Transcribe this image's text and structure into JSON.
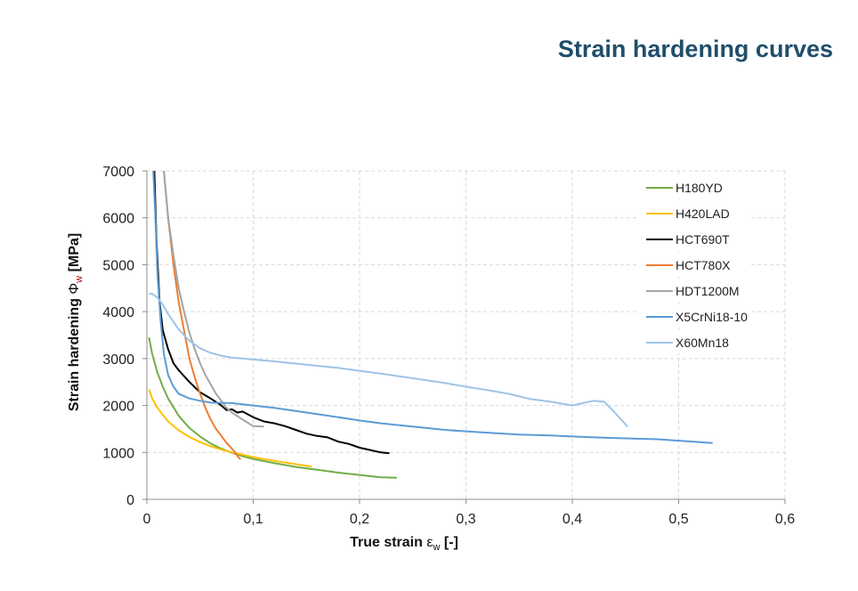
{
  "page": {
    "title": "Strain hardening curves"
  },
  "chart_data": {
    "type": "line",
    "title": "",
    "xlabel": "True strain",
    "xlabel_symbol": "ε",
    "xlabel_sub": "w",
    "xlabel_unit": "[-]",
    "ylabel": "Strain hardening",
    "ylabel_symbol": "Φ",
    "ylabel_sub": "w",
    "ylabel_unit": "[MPa]",
    "xlim": [
      0,
      0.6
    ],
    "ylim": [
      0,
      7000
    ],
    "xticks": [
      0,
      0.1,
      0.2,
      0.3,
      0.4,
      0.5,
      0.6
    ],
    "xtick_labels": [
      "0",
      "0,1",
      "0,2",
      "0,3",
      "0,4",
      "0,5",
      "0,6"
    ],
    "yticks": [
      0,
      1000,
      2000,
      3000,
      4000,
      5000,
      6000,
      7000
    ],
    "ytick_labels": [
      "0",
      "1000",
      "2000",
      "3000",
      "4000",
      "5000",
      "6000",
      "7000"
    ],
    "grid": true,
    "legend_position": "right",
    "series": [
      {
        "name": "H180YD",
        "color": "#70ad47",
        "x": [
          0.002,
          0.005,
          0.01,
          0.015,
          0.02,
          0.03,
          0.04,
          0.05,
          0.06,
          0.07,
          0.08,
          0.09,
          0.1,
          0.12,
          0.14,
          0.16,
          0.18,
          0.2,
          0.22,
          0.235
        ],
        "y": [
          3450,
          3100,
          2700,
          2400,
          2150,
          1780,
          1520,
          1340,
          1190,
          1080,
          990,
          920,
          860,
          770,
          690,
          630,
          570,
          520,
          470,
          460
        ]
      },
      {
        "name": "H420LAD",
        "color": "#ffc000",
        "x": [
          0.002,
          0.005,
          0.01,
          0.015,
          0.02,
          0.03,
          0.04,
          0.05,
          0.06,
          0.07,
          0.08,
          0.09,
          0.1,
          0.12,
          0.14,
          0.155
        ],
        "y": [
          2340,
          2150,
          1950,
          1800,
          1660,
          1470,
          1330,
          1220,
          1130,
          1060,
          1000,
          950,
          900,
          820,
          750,
          700
        ]
      },
      {
        "name": "HCT690T",
        "color": "#000000",
        "x": [
          0.007,
          0.009,
          0.012,
          0.015,
          0.02,
          0.025,
          0.03,
          0.04,
          0.05,
          0.06,
          0.07,
          0.075,
          0.08,
          0.085,
          0.09,
          0.1,
          0.11,
          0.12,
          0.13,
          0.14,
          0.15,
          0.16,
          0.17,
          0.18,
          0.19,
          0.2,
          0.21,
          0.22,
          0.228
        ],
        "y": [
          7000,
          5500,
          4200,
          3600,
          3200,
          2900,
          2750,
          2500,
          2280,
          2150,
          2000,
          1900,
          1920,
          1850,
          1870,
          1750,
          1660,
          1620,
          1560,
          1480,
          1400,
          1350,
          1320,
          1230,
          1180,
          1100,
          1050,
          1000,
          980
        ]
      },
      {
        "name": "HCT780X",
        "color": "#ed7d31",
        "x": [
          0.016,
          0.02,
          0.025,
          0.03,
          0.035,
          0.04,
          0.045,
          0.05,
          0.055,
          0.06,
          0.065,
          0.07,
          0.075,
          0.08,
          0.083,
          0.086,
          0.088
        ],
        "y": [
          7000,
          6000,
          5000,
          4200,
          3600,
          3000,
          2600,
          2250,
          1950,
          1700,
          1500,
          1350,
          1200,
          1080,
          1000,
          900,
          850
        ]
      },
      {
        "name": "HDT1200M",
        "color": "#a5a5a5",
        "x": [
          0.016,
          0.02,
          0.025,
          0.03,
          0.035,
          0.04,
          0.045,
          0.05,
          0.055,
          0.06,
          0.065,
          0.07,
          0.075,
          0.08,
          0.09,
          0.1,
          0.11
        ],
        "y": [
          7000,
          6000,
          5200,
          4500,
          4000,
          3550,
          3200,
          2900,
          2650,
          2450,
          2250,
          2100,
          1950,
          1850,
          1700,
          1560,
          1550
        ]
      },
      {
        "name": "X5CrNi18-10",
        "color": "#5b9bd5",
        "x": [
          0.006,
          0.008,
          0.01,
          0.013,
          0.016,
          0.02,
          0.025,
          0.03,
          0.04,
          0.05,
          0.06,
          0.08,
          0.1,
          0.12,
          0.15,
          0.18,
          0.2,
          0.22,
          0.25,
          0.28,
          0.3,
          0.32,
          0.35,
          0.38,
          0.4,
          0.42,
          0.45,
          0.48,
          0.5,
          0.52,
          0.532
        ],
        "y": [
          7000,
          6000,
          4800,
          3800,
          3100,
          2650,
          2400,
          2250,
          2150,
          2100,
          2060,
          2050,
          2000,
          1950,
          1850,
          1750,
          1680,
          1620,
          1550,
          1480,
          1450,
          1420,
          1380,
          1360,
          1340,
          1320,
          1300,
          1280,
          1250,
          1220,
          1200
        ]
      },
      {
        "name": "X60Mn18",
        "color": "#9dc3e6",
        "x": [
          0.002,
          0.005,
          0.01,
          0.015,
          0.02,
          0.03,
          0.04,
          0.05,
          0.06,
          0.07,
          0.08,
          0.1,
          0.12,
          0.15,
          0.18,
          0.2,
          0.22,
          0.25,
          0.28,
          0.3,
          0.32,
          0.34,
          0.36,
          0.38,
          0.4,
          0.41,
          0.42,
          0.43,
          0.44,
          0.452
        ],
        "y": [
          4380,
          4380,
          4300,
          4150,
          3950,
          3620,
          3380,
          3220,
          3120,
          3060,
          3020,
          2980,
          2940,
          2870,
          2800,
          2740,
          2680,
          2580,
          2480,
          2400,
          2330,
          2250,
          2140,
          2080,
          2000,
          2050,
          2100,
          2080,
          1850,
          1550
        ]
      }
    ]
  }
}
